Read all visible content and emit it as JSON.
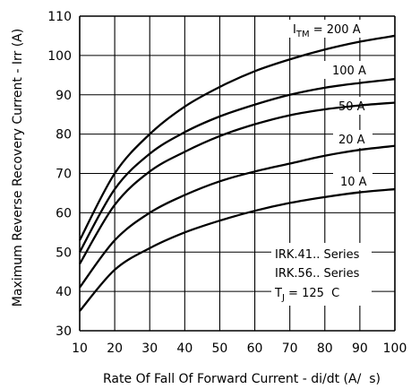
{
  "chart_data": {
    "type": "line",
    "xlabel": "Rate Of Fall Of Forward Current - di/dt (A/  s)",
    "ylabel": "Maximum Reverse Recovery Current - Irr (A)",
    "xlim": [
      10,
      100
    ],
    "ylim": [
      30,
      110
    ],
    "x_ticks": [
      10,
      20,
      30,
      40,
      50,
      60,
      70,
      80,
      90,
      100
    ],
    "y_ticks": [
      30,
      40,
      50,
      60,
      70,
      80,
      90,
      100,
      110
    ],
    "x_tick_labels": [
      "10",
      "20",
      "30",
      "40",
      "50",
      "60",
      "70",
      "80",
      "90",
      "100"
    ],
    "y_tick_labels": [
      "30",
      "40",
      "50",
      "60",
      "70",
      "80",
      "90",
      "100",
      "110"
    ],
    "grid": true,
    "x": [
      10,
      20,
      30,
      40,
      50,
      60,
      70,
      80,
      90,
      100
    ],
    "series": [
      {
        "label_main": "I",
        "label_sub": "TM",
        "label_rest": " = 200 A",
        "values": [
          53,
          70,
          80,
          87,
          92,
          96,
          99,
          101.5,
          103.5,
          105
        ]
      },
      {
        "label_main": "100 A",
        "values": [
          50,
          66,
          75,
          80.5,
          84.5,
          87.5,
          90,
          91.8,
          93,
          94
        ]
      },
      {
        "label_main": "50 A",
        "values": [
          47,
          62,
          70.5,
          75.5,
          79.5,
          82.5,
          84.8,
          86.3,
          87.3,
          88
        ]
      },
      {
        "label_main": "20 A",
        "values": [
          41,
          53,
          60,
          64.5,
          68,
          70.5,
          72.5,
          74.5,
          76,
          77
        ]
      },
      {
        "label_main": "10 A",
        "values": [
          35,
          45.5,
          51,
          55,
          58,
          60.5,
          62.5,
          64,
          65.2,
          66
        ]
      }
    ],
    "notes": [
      "IRK.41.. Series",
      "IRK.56.. Series"
    ],
    "temp_note": {
      "main": "T",
      "sub": "J",
      "rest": " = 125  C"
    }
  }
}
